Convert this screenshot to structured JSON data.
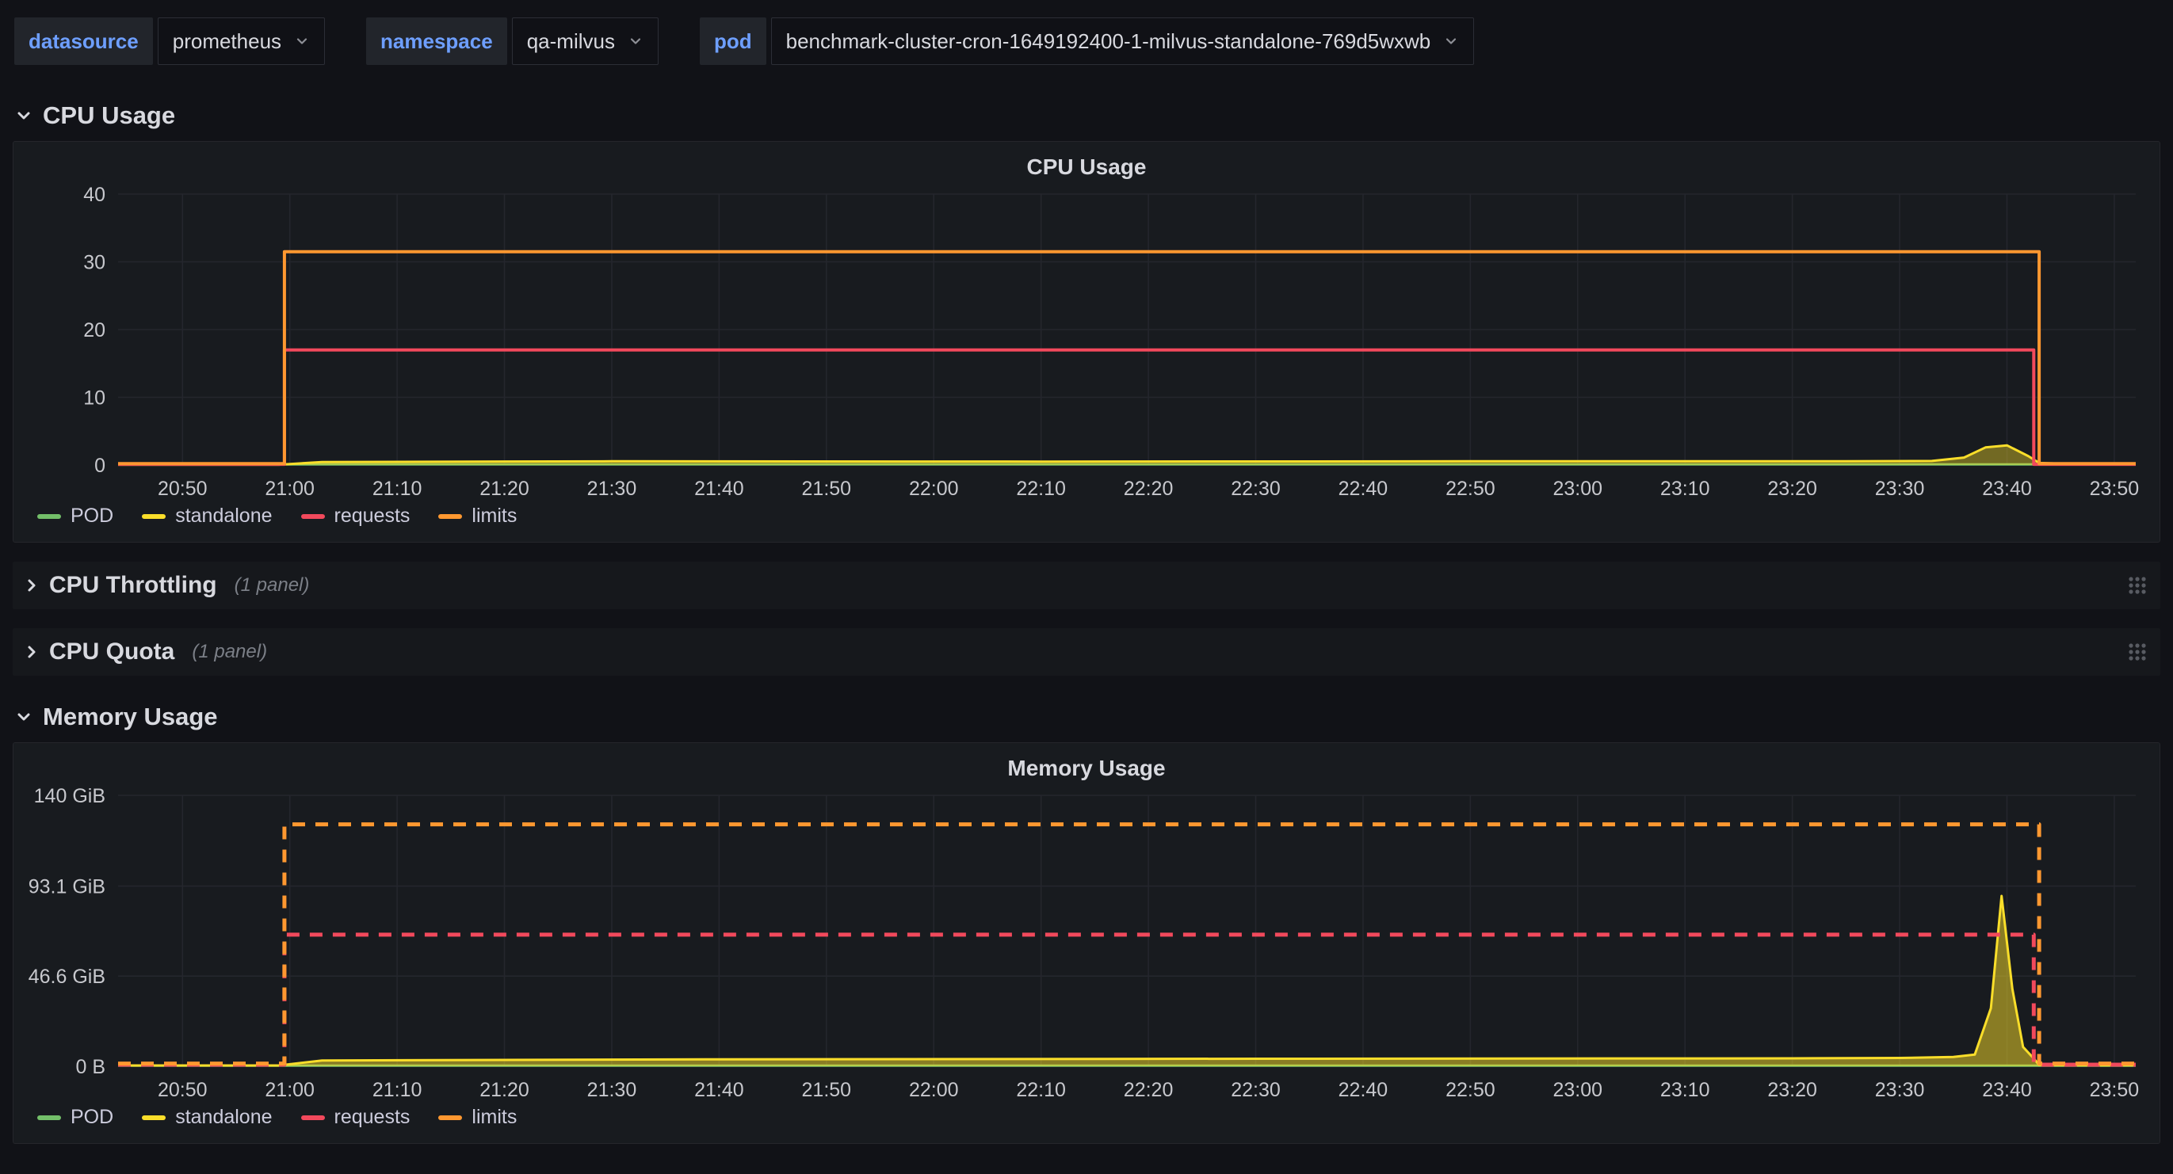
{
  "topbar": {
    "filters": [
      {
        "label": "datasource",
        "value": "prometheus"
      },
      {
        "label": "namespace",
        "value": "qa-milvus"
      },
      {
        "label": "pod",
        "value": "benchmark-cluster-cron-1649192400-1-milvus-standalone-769d5wxwb"
      }
    ]
  },
  "sections": {
    "cpu_usage": {
      "title": "CPU Usage"
    },
    "cpu_throttling": {
      "title": "CPU Throttling",
      "hint": "(1 panel)"
    },
    "cpu_quota": {
      "title": "CPU Quota",
      "hint": "(1 panel)"
    },
    "memory_usage": {
      "title": "Memory Usage"
    }
  },
  "colors": {
    "pod_green": "#73bf69",
    "standalone_yellow": "#fade2a",
    "requests_red": "#f2495c",
    "limits_orange": "#ff9830",
    "accent_blue": "#6e9fff",
    "panel_bg": "#181b1f",
    "page_bg": "#111217"
  },
  "chart_data": [
    {
      "type": "line",
      "title": "CPU Usage",
      "x_domain": [
        1244,
        1432
      ],
      "y_domain": [
        0,
        40
      ],
      "x_ticks": [
        {
          "t": 1250,
          "label": "20:50"
        },
        {
          "t": 1260,
          "label": "21:00"
        },
        {
          "t": 1270,
          "label": "21:10"
        },
        {
          "t": 1280,
          "label": "21:20"
        },
        {
          "t": 1290,
          "label": "21:30"
        },
        {
          "t": 1300,
          "label": "21:40"
        },
        {
          "t": 1310,
          "label": "21:50"
        },
        {
          "t": 1320,
          "label": "22:00"
        },
        {
          "t": 1330,
          "label": "22:10"
        },
        {
          "t": 1340,
          "label": "22:20"
        },
        {
          "t": 1350,
          "label": "22:30"
        },
        {
          "t": 1360,
          "label": "22:40"
        },
        {
          "t": 1370,
          "label": "22:50"
        },
        {
          "t": 1380,
          "label": "23:00"
        },
        {
          "t": 1390,
          "label": "23:10"
        },
        {
          "t": 1400,
          "label": "23:20"
        },
        {
          "t": 1410,
          "label": "23:30"
        },
        {
          "t": 1420,
          "label": "23:40"
        },
        {
          "t": 1430,
          "label": "23:50"
        }
      ],
      "y_ticks": [
        {
          "v": 0,
          "label": "0"
        },
        {
          "v": 10,
          "label": "10"
        },
        {
          "v": 20,
          "label": "20"
        },
        {
          "v": 30,
          "label": "30"
        },
        {
          "v": 40,
          "label": "40"
        }
      ],
      "series": [
        {
          "name": "POD",
          "color": "#73bf69",
          "width": 3,
          "points": [
            [
              1244,
              0.08
            ],
            [
              1432,
              0.08
            ]
          ]
        },
        {
          "name": "standalone",
          "color": "#fade2a",
          "width": 3,
          "fill": true,
          "fill_opacity": 0.4,
          "points": [
            [
              1244,
              0.05
            ],
            [
              1259,
              0.05
            ],
            [
              1263,
              0.45
            ],
            [
              1290,
              0.55
            ],
            [
              1330,
              0.5
            ],
            [
              1370,
              0.55
            ],
            [
              1405,
              0.55
            ],
            [
              1413,
              0.6
            ],
            [
              1416,
              1.1
            ],
            [
              1418,
              2.6
            ],
            [
              1420,
              2.9
            ],
            [
              1422,
              1.3
            ],
            [
              1423,
              0.3
            ],
            [
              1426,
              0.15
            ],
            [
              1432,
              0.15
            ]
          ]
        },
        {
          "name": "requests",
          "color": "#f2495c",
          "width": 4,
          "points": [
            [
              1244,
              0.1
            ],
            [
              1259.5,
              0.1
            ],
            [
              1259.5,
              17
            ],
            [
              1422.5,
              17
            ],
            [
              1422.5,
              0.1
            ],
            [
              1432,
              0.1
            ]
          ]
        },
        {
          "name": "limits",
          "color": "#ff9830",
          "width": 4,
          "points": [
            [
              1244,
              0.2
            ],
            [
              1259.5,
              0.2
            ],
            [
              1259.5,
              31.5
            ],
            [
              1423,
              31.5
            ],
            [
              1423,
              0.2
            ],
            [
              1432,
              0.2
            ]
          ]
        }
      ],
      "legend": [
        "POD",
        "standalone",
        "requests",
        "limits"
      ]
    },
    {
      "type": "line",
      "title": "Memory Usage",
      "unit": "GiB",
      "x_domain": [
        1244,
        1432
      ],
      "y_domain": [
        0,
        140
      ],
      "x_ticks": [
        {
          "t": 1250,
          "label": "20:50"
        },
        {
          "t": 1260,
          "label": "21:00"
        },
        {
          "t": 1270,
          "label": "21:10"
        },
        {
          "t": 1280,
          "label": "21:20"
        },
        {
          "t": 1290,
          "label": "21:30"
        },
        {
          "t": 1300,
          "label": "21:40"
        },
        {
          "t": 1310,
          "label": "21:50"
        },
        {
          "t": 1320,
          "label": "22:00"
        },
        {
          "t": 1330,
          "label": "22:10"
        },
        {
          "t": 1340,
          "label": "22:20"
        },
        {
          "t": 1350,
          "label": "22:30"
        },
        {
          "t": 1360,
          "label": "22:40"
        },
        {
          "t": 1370,
          "label": "22:50"
        },
        {
          "t": 1380,
          "label": "23:00"
        },
        {
          "t": 1390,
          "label": "23:10"
        },
        {
          "t": 1400,
          "label": "23:20"
        },
        {
          "t": 1410,
          "label": "23:30"
        },
        {
          "t": 1420,
          "label": "23:40"
        },
        {
          "t": 1430,
          "label": "23:50"
        }
      ],
      "y_ticks": [
        {
          "v": 0,
          "label": "0 B"
        },
        {
          "v": 46.6,
          "label": "46.6 GiB"
        },
        {
          "v": 93.1,
          "label": "93.1 GiB"
        },
        {
          "v": 140,
          "label": "140 GiB"
        }
      ],
      "series": [
        {
          "name": "POD",
          "color": "#73bf69",
          "width": 3,
          "points": [
            [
              1244,
              0.3
            ],
            [
              1432,
              0.3
            ]
          ]
        },
        {
          "name": "standalone",
          "color": "#fade2a",
          "width": 3,
          "fill": true,
          "fill_opacity": 0.5,
          "points": [
            [
              1244,
              0.4
            ],
            [
              1259,
              0.4
            ],
            [
              1263,
              3
            ],
            [
              1300,
              3.6
            ],
            [
              1350,
              3.9
            ],
            [
              1400,
              4.1
            ],
            [
              1410,
              4.3
            ],
            [
              1415,
              4.8
            ],
            [
              1417,
              6
            ],
            [
              1418.5,
              30
            ],
            [
              1419.5,
              88
            ],
            [
              1420.5,
              40
            ],
            [
              1421.5,
              10
            ],
            [
              1422.5,
              4
            ],
            [
              1423,
              0.6
            ],
            [
              1426,
              0.5
            ],
            [
              1432,
              0.5
            ]
          ]
        },
        {
          "name": "requests",
          "color": "#f2495c",
          "width": 5,
          "dash": "16,13",
          "points": [
            [
              1244,
              0.8
            ],
            [
              1259.5,
              0.8
            ],
            [
              1259.5,
              68
            ],
            [
              1422.5,
              68
            ],
            [
              1422.5,
              0.8
            ],
            [
              1432,
              0.8
            ]
          ]
        },
        {
          "name": "limits",
          "color": "#ff9830",
          "width": 5,
          "dash": "16,13",
          "points": [
            [
              1244,
              1.4
            ],
            [
              1259.5,
              1.4
            ],
            [
              1259.5,
              125
            ],
            [
              1423,
              125
            ],
            [
              1423,
              1.4
            ],
            [
              1432,
              1.4
            ]
          ]
        }
      ],
      "legend": [
        "POD",
        "standalone",
        "requests",
        "limits"
      ]
    }
  ]
}
